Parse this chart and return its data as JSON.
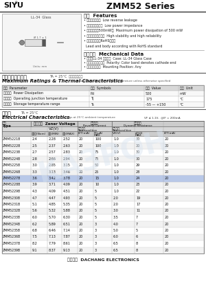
{
  "title_left": "SIYU",
  "title_right": "ZMM52 Series",
  "features_title": "特征  Features",
  "features": [
    "• 反向漏电流小。  Low reverse leakage",
    "• 低功耗安全阻抗。  Low power impedance",
    "• 最大功耗耗散500mW。  Maximum power dissipation of 500 mW",
    "• 高稳定性和可靠性。  High stability and high reliability",
    "• 引线和管体符合RoHS标准。",
    "  Lead and body according with RoHS standard"
  ],
  "mech_title": "机械数据  Mechanical Data",
  "mech": [
    "• 外壳：LL-34 玻璃外壳  Case: LL-34 Glass Case",
    "• 极性：色环端为负极  Polarity: Color band denotes cathode end",
    "• 安装位置：任意  Mounting Position: Any"
  ],
  "max_ratings_title": "极限值和温度特性",
  "max_ratings_subtitle": "TA = 25°C  除非另有规定。",
  "max_ratings_en": "Maximum Ratings & Thermal Characteristics",
  "max_ratings_note": "Ratings at 25°C ambient temperature unless otherwise specified",
  "mr_headers": [
    "参数  Parameter",
    "符号  Symbols",
    "数値  Value",
    "单位  Unit"
  ],
  "mr_rows": [
    [
      "功率消耗  Power Dissipation",
      "Pd",
      "500",
      "mW"
    ],
    [
      "工作结温  Operating junction temperature",
      "Tj",
      "175",
      "°C"
    ],
    [
      "存储温度  Storage temperature range",
      "Ts",
      "-55 — +150",
      "°C"
    ]
  ],
  "elec_title": "电特性",
  "elec_ta": "TA = 25°C",
  "elec_en": "Electrical Characteristics",
  "elec_note": "Ratings at 25°C ambient temperature",
  "elec_vf": "VF ≤ 1.1V,  @IF = 200mA",
  "table_rows": [
    [
      "ZMM5221B",
      "2.4",
      "2.28",
      "2.52",
      "20",
      "100",
      "1.0",
      "30",
      "20"
    ],
    [
      "ZMM5222B",
      "2.5",
      "2.37",
      "2.63",
      "20",
      "100",
      "1.0",
      "30",
      "20"
    ],
    [
      "ZMM5223B",
      "2.7",
      "2.57",
      "2.83",
      "20",
      "75",
      "1.0",
      "30",
      "20"
    ],
    [
      "ZMM5224B",
      "2.8",
      "2.66",
      "2.94",
      "20",
      "75",
      "1.0",
      "30",
      "20"
    ],
    [
      "ZMM5225B",
      "3.0",
      "2.85",
      "3.15",
      "20",
      "50",
      "1.0",
      "29",
      "20"
    ],
    [
      "ZMM5226B",
      "3.3",
      "3.13",
      "3.46",
      "20",
      "25",
      "1.0",
      "28",
      "20"
    ],
    [
      "ZMM5227B",
      "3.6",
      "3.42",
      "3.78",
      "20",
      "15",
      "1.0",
      "24",
      "20"
    ],
    [
      "ZMM5228B",
      "3.9",
      "3.71",
      "4.09",
      "20",
      "10",
      "1.0",
      "23",
      "20"
    ],
    [
      "ZMM5229B",
      "4.3",
      "4.09",
      "4.51",
      "20",
      "5",
      "1.0",
      "22",
      "20"
    ],
    [
      "ZMM5230B",
      "4.7",
      "4.47",
      "4.93",
      "20",
      "5",
      "2.0",
      "19",
      "20"
    ],
    [
      "ZMM5231B",
      "5.1",
      "4.85",
      "5.35",
      "20",
      "5",
      "2.0",
      "17",
      "20"
    ],
    [
      "ZMM5232B",
      "5.6",
      "5.32",
      "5.88",
      "20",
      "5",
      "3.0",
      "11",
      "20"
    ],
    [
      "ZMM5233B",
      "6.0",
      "5.70",
      "6.30",
      "20",
      "5",
      "3.5",
      "7",
      "20"
    ],
    [
      "ZMM5234B",
      "6.2",
      "5.89",
      "6.51",
      "20",
      "3",
      "4.0",
      "7",
      "20"
    ],
    [
      "ZMM5235B",
      "6.8",
      "6.46",
      "7.14",
      "20",
      "3",
      "5.0",
      "5",
      "20"
    ],
    [
      "ZMM5236B",
      "7.5",
      "7.13",
      "7.87",
      "20",
      "3",
      "6.0",
      "6",
      "20"
    ],
    [
      "ZMM5237B",
      "8.2",
      "7.79",
      "8.61",
      "20",
      "3",
      "6.5",
      "8",
      "20"
    ],
    [
      "ZMM5239B",
      "9.1",
      "8.37",
      "9.13",
      "20",
      "3",
      "6.5",
      "8",
      "20"
    ]
  ],
  "footer": "大昌电子  DACHANG ELECTRONICS",
  "highlight_row": "ZMM5227B",
  "watermark": "KAЗРОН"
}
